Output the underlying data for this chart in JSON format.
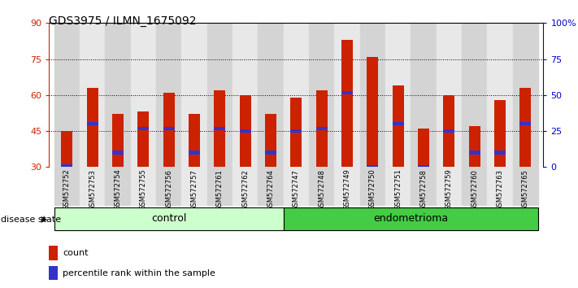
{
  "title": "GDS3975 / ILMN_1675092",
  "samples": [
    "GSM572752",
    "GSM572753",
    "GSM572754",
    "GSM572755",
    "GSM572756",
    "GSM572757",
    "GSM572761",
    "GSM572762",
    "GSM572764",
    "GSM572747",
    "GSM572748",
    "GSM572749",
    "GSM572750",
    "GSM572751",
    "GSM572758",
    "GSM572759",
    "GSM572760",
    "GSM572763",
    "GSM572765"
  ],
  "bar_heights": [
    45,
    63,
    52,
    53,
    61,
    52,
    62,
    60,
    52,
    59,
    62,
    83,
    76,
    64,
    46,
    60,
    47,
    58,
    63
  ],
  "blue_markers": [
    30.5,
    48,
    36,
    46,
    46,
    36,
    46,
    45,
    36,
    45,
    46,
    61,
    30,
    48,
    30,
    45,
    36,
    36,
    48
  ],
  "bar_bottom": 30,
  "ylim_left": [
    30,
    90
  ],
  "ylim_right": [
    0,
    100
  ],
  "yticks_left": [
    30,
    45,
    60,
    75,
    90
  ],
  "yticks_right": [
    0,
    25,
    50,
    75,
    100
  ],
  "ytick_labels_right": [
    "0",
    "25",
    "50",
    "75",
    "100%"
  ],
  "bar_color": "#cc2200",
  "marker_color": "#3333cc",
  "control_count": 9,
  "groups": [
    {
      "label": "control",
      "start": 0,
      "end": 9,
      "color": "#ccffcc"
    },
    {
      "label": "endometrioma",
      "start": 9,
      "end": 19,
      "color": "#44cc44"
    }
  ],
  "legend_items": [
    {
      "label": "count",
      "color": "#cc2200"
    },
    {
      "label": "percentile rank within the sample",
      "color": "#3333cc"
    }
  ],
  "disease_state_label": "disease state",
  "left_axis_color": "#cc2200",
  "right_axis_color": "#0000cc",
  "col_bg_even": "#d4d4d4",
  "col_bg_odd": "#e8e8e8"
}
